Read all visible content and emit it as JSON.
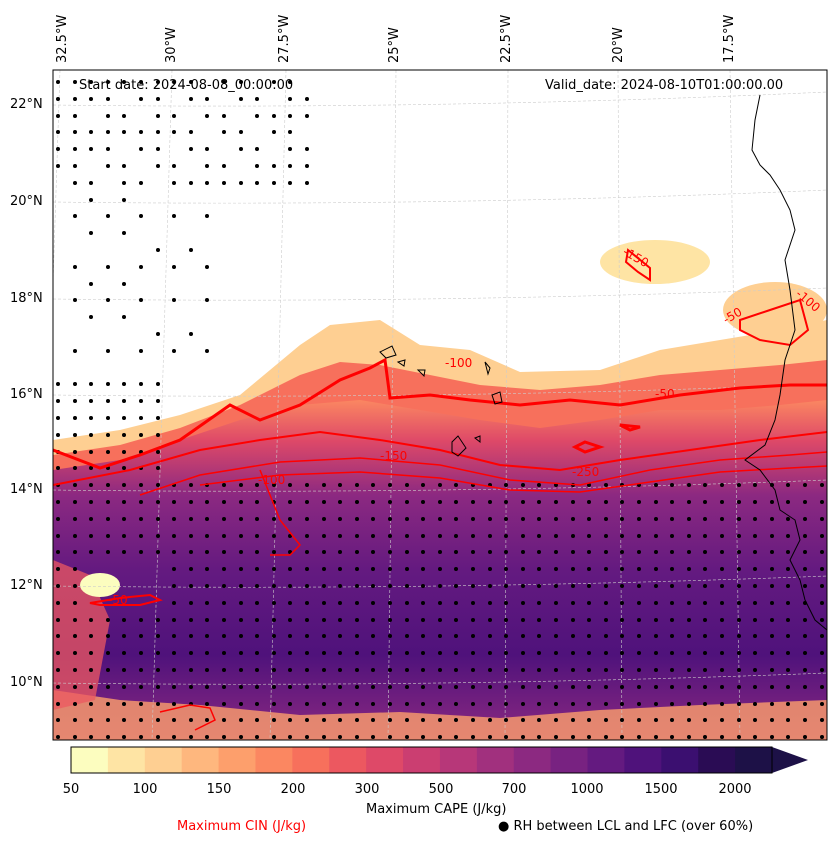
{
  "map": {
    "start_label": "Start date: 2024-08-08_00:00:00",
    "valid_label": "Valid_date: 2024-08-10T01:00:00.00",
    "lon_labels": [
      "32.5°W",
      "30°W",
      "27.5°W",
      "25°W",
      "22.5°W",
      "20°W",
      "17.5°W"
    ],
    "lat_labels": [
      "22°N",
      "20°N",
      "18°N",
      "16°N",
      "14°N",
      "12°N",
      "10°N"
    ],
    "cin_contour_labels": [
      "-50",
      "-100",
      "-150",
      "-250",
      "-150",
      "-100",
      "-50",
      "-100",
      "-50"
    ],
    "cin_color": "#ff0000"
  },
  "colorbar": {
    "title": "Maximum CAPE (J/kg)",
    "ticks": [
      "50",
      "100",
      "150",
      "200",
      "300",
      "500",
      "700",
      "1000",
      "1500",
      "2000"
    ],
    "colors": [
      "#fcfdbf",
      "#fee4a4",
      "#fecf92",
      "#feb77e",
      "#fd9f6c",
      "#fb8761",
      "#f7705c",
      "#ec5860",
      "#de4968",
      "#cb3e71",
      "#b73779",
      "#a1307e",
      "#8c2981",
      "#782281",
      "#641a80",
      "#4f127b",
      "#3b0f70",
      "#2a0c54",
      "#1d1147"
    ]
  },
  "legend": {
    "cin_label": "Maximum CIN (J/kg)",
    "rh_marker": "●",
    "rh_label": "RH between LCL and LFC (over 60%)"
  }
}
